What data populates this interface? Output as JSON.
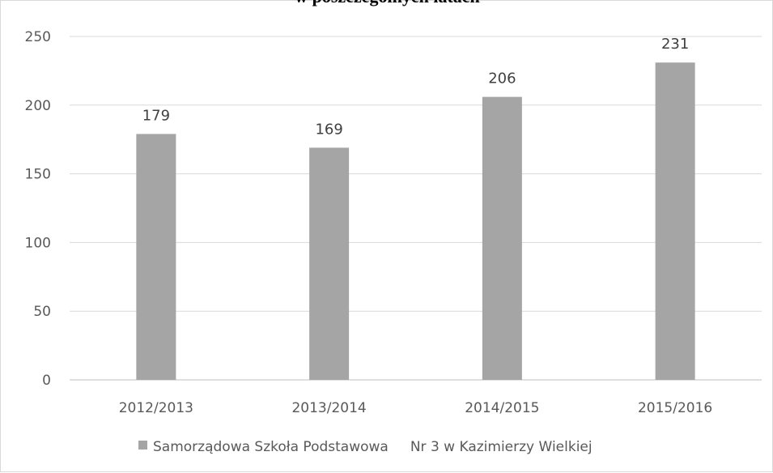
{
  "chart_data": {
    "type": "bar",
    "title": "w poszczególnych latach",
    "categories": [
      "2012/2013",
      "2013/2014",
      "2014/2015",
      "2015/2016"
    ],
    "series": [
      {
        "name": "Samorządowa Szkoła Podstawowa     Nr 3 w Kazimierzy Wielkiej",
        "values": [
          179,
          169,
          206,
          231
        ],
        "color": "#a5a5a5"
      }
    ],
    "y_ticks": [
      "0",
      "50",
      "100",
      "150",
      "200",
      "250"
    ],
    "ylim": [
      0,
      250
    ],
    "grid": true,
    "legend_position": "bottom",
    "colors": {
      "grid": "#d9d9d9",
      "axis": "#bfbfbf",
      "text": "#595959"
    }
  }
}
